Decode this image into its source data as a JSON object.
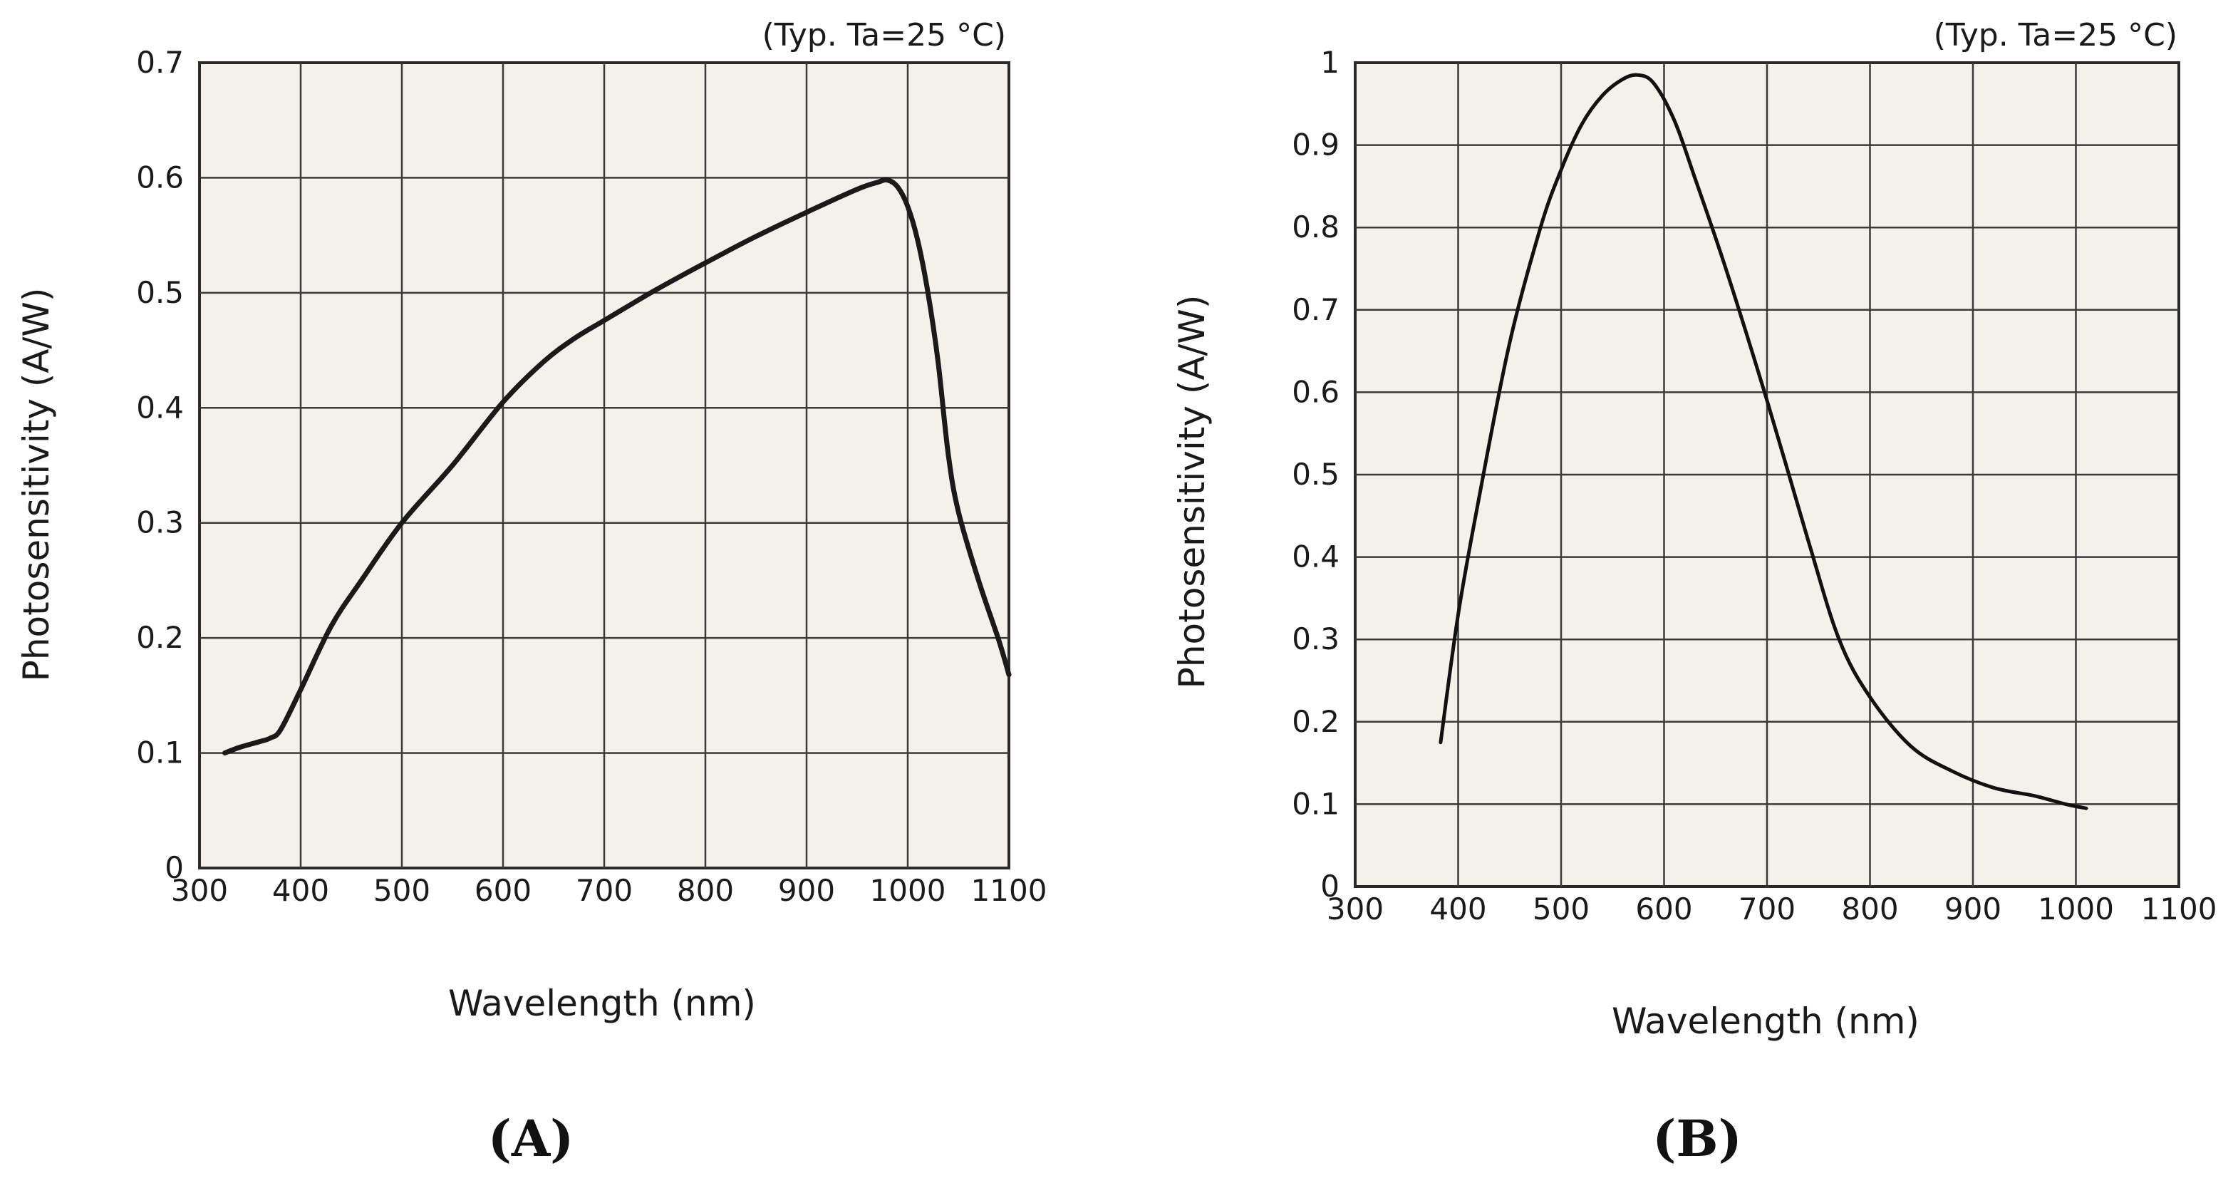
{
  "chart_data": [
    {
      "type": "line",
      "panel": "A",
      "panel_open": "(",
      "panel_close": ")",
      "note": "(Typ. Ta=25 °C)",
      "xlabel": "Wavelength (nm)",
      "ylabel": "Photosensitivity (A/W)",
      "xlim": [
        300,
        1100
      ],
      "ylim": [
        0,
        0.7
      ],
      "grid": true,
      "xticks": [
        "300",
        "400",
        "500",
        "600",
        "700",
        "800",
        "900",
        "1000",
        "1100"
      ],
      "yticks": [
        "0",
        "0.1",
        "0.2",
        "0.3",
        "0.4",
        "0.5",
        "0.6",
        "0.7"
      ],
      "series": [
        {
          "name": "Photosensitivity",
          "color": "#1a1a1a",
          "x": [
            325,
            340,
            360,
            370,
            380,
            400,
            430,
            460,
            500,
            550,
            600,
            640,
            670,
            700,
            750,
            800,
            850,
            900,
            950,
            970,
            980,
            990,
            1000,
            1010,
            1020,
            1030,
            1040,
            1050,
            1070,
            1090,
            1100
          ],
          "y": [
            0.1,
            0.105,
            0.11,
            0.113,
            0.12,
            0.155,
            0.21,
            0.25,
            0.3,
            0.35,
            0.405,
            0.44,
            0.46,
            0.476,
            0.502,
            0.526,
            0.549,
            0.57,
            0.59,
            0.596,
            0.598,
            0.592,
            0.575,
            0.545,
            0.5,
            0.44,
            0.36,
            0.31,
            0.25,
            0.198,
            0.168
          ]
        }
      ]
    },
    {
      "type": "line",
      "panel": "B",
      "panel_open": "(",
      "panel_close": ")",
      "note": "(Typ. Ta=25 °C)",
      "xlabel": "Wavelength (nm)",
      "ylabel": "Photosensitivity (A/W)",
      "xlim": [
        300,
        1100
      ],
      "ylim": [
        0,
        1
      ],
      "grid": true,
      "xticks": [
        "300",
        "400",
        "500",
        "600",
        "700",
        "800",
        "900",
        "1000",
        "1100"
      ],
      "yticks": [
        "0",
        "0.1",
        "0.2",
        "0.3",
        "0.4",
        "0.5",
        "0.6",
        "0.7",
        "0.8",
        "0.9",
        "1"
      ],
      "series": [
        {
          "name": "Photosensitivity",
          "color": "#111111",
          "x": [
            383,
            400,
            420,
            450,
            480,
            500,
            520,
            540,
            560,
            575,
            590,
            610,
            630,
            660,
            700,
            740,
            770,
            800,
            840,
            880,
            920,
            960,
            990,
            1010
          ],
          "y": [
            0.175,
            0.33,
            0.47,
            0.66,
            0.8,
            0.87,
            0.925,
            0.96,
            0.98,
            0.985,
            0.975,
            0.93,
            0.86,
            0.75,
            0.59,
            0.42,
            0.3,
            0.23,
            0.17,
            0.14,
            0.12,
            0.11,
            0.1,
            0.095
          ]
        }
      ]
    }
  ]
}
